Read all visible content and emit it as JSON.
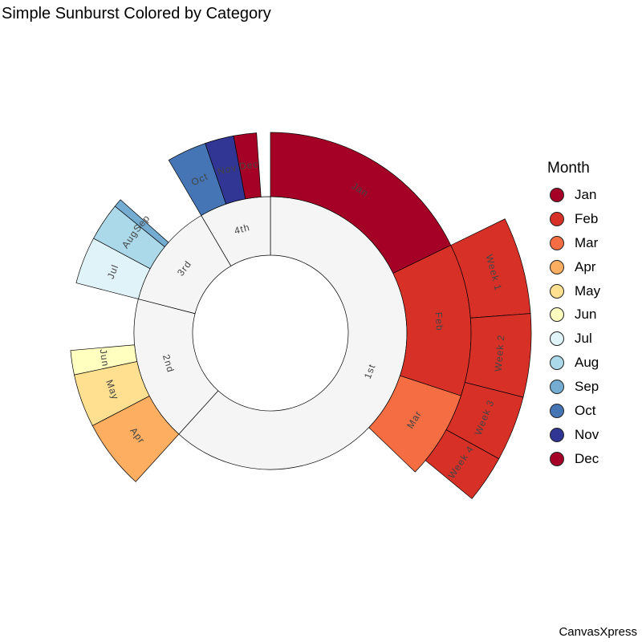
{
  "title": "Simple Sunburst Colored by Category",
  "watermark": "CanvasXpress",
  "chart_data": {
    "type": "sunburst",
    "color_by": "Month",
    "colors": {
      "Jan": "#a50026",
      "Feb": "#d73027",
      "Mar": "#f46d43",
      "Apr": "#fdae61",
      "May": "#fee090",
      "Jun": "#ffffbf",
      "Jul": "#e0f3f8",
      "Aug": "#abd9e9",
      "Sep": "#74add1",
      "Oct": "#4575b4",
      "Nov": "#313695",
      "Dec": "#a50026",
      "quarter": "#f5f5f5"
    },
    "legend": {
      "title": "Month",
      "items": [
        "Jan",
        "Feb",
        "Mar",
        "Apr",
        "May",
        "Jun",
        "Jul",
        "Aug",
        "Sep",
        "Oct",
        "Nov",
        "Dec"
      ]
    },
    "rings": [
      {
        "level": "quarter",
        "segments": [
          {
            "label": "1st",
            "value": 50.3
          },
          {
            "label": "2nd",
            "value": 14.1
          },
          {
            "label": "3rd",
            "value": 10.2
          },
          {
            "label": "4th",
            "value": 6.9
          }
        ]
      },
      {
        "level": "month",
        "segments": [
          {
            "label": "Jan",
            "value": 14.5,
            "parent": "1st"
          },
          {
            "label": "Feb",
            "value": 10.0,
            "parent": "1st"
          },
          {
            "label": "Mar",
            "value": 5.8,
            "parent": "1st"
          },
          {
            "label": "Apr",
            "value": 4.6,
            "parent": "2nd"
          },
          {
            "label": "May",
            "value": 3.5,
            "parent": "2nd"
          },
          {
            "label": "Jun",
            "value": 1.6,
            "parent": "2nd"
          },
          {
            "label": "Jul",
            "value": 3.1,
            "parent": "3rd"
          },
          {
            "label": "Aug",
            "value": 2.5,
            "parent": "3rd"
          },
          {
            "label": "Sep",
            "value": 0.55,
            "parent": "3rd"
          },
          {
            "label": "Oct",
            "value": 2.6,
            "parent": "4th"
          },
          {
            "label": "Nov",
            "value": 1.9,
            "parent": "4th"
          },
          {
            "label": "Dec",
            "value": 1.5,
            "parent": "4th"
          }
        ]
      },
      {
        "level": "week",
        "segments": [
          {
            "label": "Week 1",
            "value": 4.9,
            "parent": "Feb"
          },
          {
            "label": "Week 2",
            "value": 4.2,
            "parent": "Feb"
          },
          {
            "label": "Week 3",
            "value": 3.3,
            "parent": "Feb"
          },
          {
            "label": "Week 4",
            "value": 2.4,
            "parent": "Feb"
          }
        ]
      }
    ]
  }
}
